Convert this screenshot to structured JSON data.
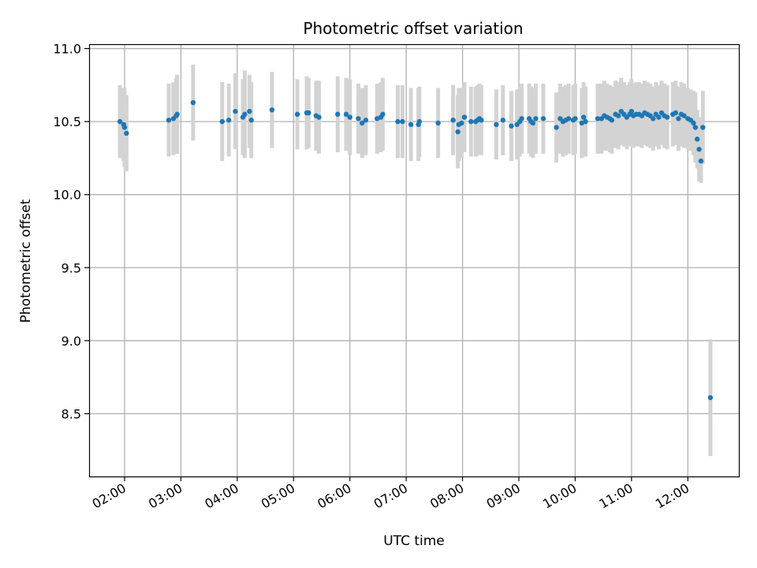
{
  "chart_data": {
    "type": "scatter",
    "title": "Photometric offset variation",
    "xlabel": "UTC time",
    "ylabel": "Photometric offset",
    "x_tick_labels": [
      "02:00",
      "03:00",
      "04:00",
      "05:00",
      "06:00",
      "07:00",
      "08:00",
      "09:00",
      "10:00",
      "11:00",
      "12:00"
    ],
    "y_tick_labels": [
      "8.5",
      "9.0",
      "9.5",
      "10.0",
      "10.5",
      "11.0"
    ],
    "ylim": [
      8.07,
      11.03
    ],
    "grid": true,
    "colors": {
      "point": "#1f77b4",
      "errorbar": "#d3d3d3",
      "grid": "#b0b0b0"
    },
    "series": [
      {
        "x": [
          "01:55",
          "01:59",
          "02:00",
          "02:02",
          "02:47",
          "02:52",
          "02:55",
          "02:56",
          "03:13",
          "03:44",
          "03:51",
          "03:58",
          "04:06",
          "04:08",
          "04:13",
          "04:15",
          "04:37",
          "05:04",
          "05:14",
          "05:16",
          "05:24",
          "05:27",
          "05:47",
          "05:56",
          "06:00",
          "06:09",
          "06:13",
          "06:17",
          "06:29",
          "06:33",
          "06:35",
          "06:51",
          "06:56",
          "07:05",
          "07:13",
          "07:14",
          "07:34",
          "07:50",
          "07:55",
          "07:56",
          "07:59",
          "08:02",
          "08:09",
          "08:14",
          "08:16",
          "08:18",
          "08:20",
          "08:36",
          "08:43",
          "08:52",
          "08:58",
          "09:01",
          "09:03",
          "09:11",
          "09:13",
          "09:15",
          "09:18",
          "09:26",
          "09:40",
          "09:44",
          "09:47",
          "09:50",
          "09:53",
          "09:58",
          "10:00",
          "10:07",
          "10:09",
          "10:11",
          "10:24",
          "10:28",
          "10:31",
          "10:34",
          "10:37",
          "10:39",
          "10:43",
          "10:46",
          "10:49",
          "10:52",
          "10:55",
          "10:58",
          "11:00",
          "11:02",
          "11:05",
          "11:08",
          "11:11",
          "11:14",
          "11:17",
          "11:20",
          "11:23",
          "11:26",
          "11:29",
          "11:32",
          "11:35",
          "11:38",
          "11:44",
          "11:47",
          "11:50",
          "11:53",
          "11:56",
          "12:00",
          "12:03",
          "12:06",
          "12:08",
          "12:10",
          "12:12",
          "12:14",
          "12:16",
          "12:24"
        ],
        "y": [
          10.5,
          10.48,
          10.46,
          10.42,
          10.51,
          10.52,
          10.54,
          10.55,
          10.63,
          10.5,
          10.51,
          10.57,
          10.53,
          10.55,
          10.57,
          10.51,
          10.58,
          10.55,
          10.56,
          10.56,
          10.54,
          10.53,
          10.55,
          10.55,
          10.53,
          10.52,
          10.49,
          10.51,
          10.52,
          10.53,
          10.55,
          10.5,
          10.5,
          10.48,
          10.48,
          10.5,
          10.49,
          10.51,
          10.43,
          10.48,
          10.49,
          10.53,
          10.5,
          10.5,
          10.51,
          10.52,
          10.51,
          10.48,
          10.51,
          10.47,
          10.48,
          10.5,
          10.52,
          10.52,
          10.5,
          10.49,
          10.52,
          10.52,
          10.46,
          10.52,
          10.5,
          10.51,
          10.52,
          10.51,
          10.52,
          10.49,
          10.53,
          10.5,
          10.52,
          10.52,
          10.54,
          10.53,
          10.52,
          10.51,
          10.55,
          10.54,
          10.57,
          10.55,
          10.53,
          10.55,
          10.57,
          10.54,
          10.55,
          10.55,
          10.54,
          10.56,
          10.55,
          10.54,
          10.52,
          10.55,
          10.53,
          10.56,
          10.54,
          10.53,
          10.55,
          10.56,
          10.52,
          10.55,
          10.54,
          10.52,
          10.51,
          10.49,
          10.46,
          10.38,
          10.31,
          10.23,
          10.46,
          8.61
        ],
        "yerr": [
          0.25,
          0.25,
          0.27,
          0.26,
          0.25,
          0.25,
          0.26,
          0.27,
          0.26,
          0.27,
          0.25,
          0.26,
          0.26,
          0.3,
          0.25,
          0.26,
          0.26,
          0.24,
          0.25,
          0.24,
          0.24,
          0.25,
          0.26,
          0.25,
          0.26,
          0.24,
          0.24,
          0.24,
          0.24,
          0.24,
          0.25,
          0.25,
          0.25,
          0.25,
          0.25,
          0.24,
          0.24,
          0.24,
          0.25,
          0.25,
          0.24,
          0.24,
          0.24,
          0.24,
          0.24,
          0.24,
          0.24,
          0.24,
          0.24,
          0.24,
          0.24,
          0.24,
          0.24,
          0.24,
          0.24,
          0.24,
          0.24,
          0.24,
          0.24,
          0.24,
          0.24,
          0.24,
          0.24,
          0.24,
          0.24,
          0.24,
          0.24,
          0.24,
          0.24,
          0.24,
          0.24,
          0.23,
          0.23,
          0.23,
          0.23,
          0.23,
          0.23,
          0.22,
          0.22,
          0.22,
          0.22,
          0.22,
          0.22,
          0.22,
          0.22,
          0.22,
          0.22,
          0.22,
          0.22,
          0.22,
          0.22,
          0.22,
          0.22,
          0.22,
          0.22,
          0.22,
          0.22,
          0.22,
          0.22,
          0.21,
          0.21,
          0.22,
          0.24,
          0.2,
          0.22,
          0.15,
          0.25,
          0.4
        ]
      }
    ]
  }
}
